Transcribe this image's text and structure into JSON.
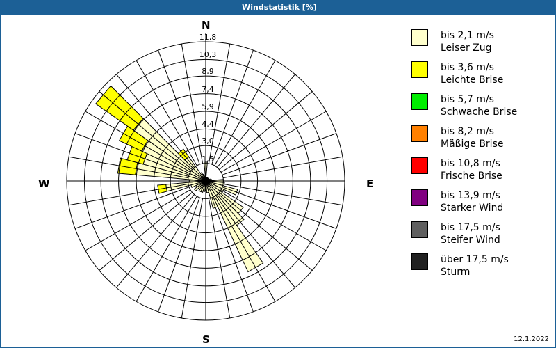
{
  "window": {
    "title": "Windstatistik [%]",
    "title_bar_color": "#1c6096",
    "date": "12.1.2022"
  },
  "compass": {
    "n": "N",
    "e": "E",
    "s": "S",
    "w": "W"
  },
  "ring_labels": [
    "1,5",
    "3,0",
    "4,4",
    "5,9",
    "7,4",
    "8,9",
    "10,3",
    "11,8"
  ],
  "legend": {
    "items": [
      {
        "range": "bis 2,1 m/s",
        "name": "Leiser Zug",
        "color": "#ffffcc"
      },
      {
        "range": "bis 3,6 m/s",
        "name": "Leichte Brise",
        "color": "#ffff00"
      },
      {
        "range": "bis 5,7 m/s",
        "name": "Schwache Brise",
        "color": "#00ee00"
      },
      {
        "range": "bis 8,2 m/s",
        "name": "Mäßige Brise",
        "color": "#ff8000"
      },
      {
        "range": "bis 10,8 m/s",
        "name": "Frische Brise",
        "color": "#ff0000"
      },
      {
        "range": "bis 13,9 m/s",
        "name": "Starker Wind",
        "color": "#800080"
      },
      {
        "range": "bis 17,5 m/s",
        "name": "Steifer Wind",
        "color": "#606060"
      },
      {
        "range": "über 17,5 m/s",
        "name": "Sturm",
        "color": "#202020"
      }
    ]
  },
  "chart_data": {
    "type": "windrose",
    "title": "Windstatistik [%]",
    "unit": "%",
    "radial_max": 11.8,
    "radial_ticks": [
      1.5,
      3.0,
      4.4,
      5.9,
      7.4,
      8.9,
      10.3,
      11.8
    ],
    "sector_width_deg": 10,
    "series_names": [
      "bis 2,1 m/s Leiser Zug",
      "bis 3,6 m/s Leichte Brise"
    ],
    "series_colors": [
      "#ffffcc",
      "#ffff00"
    ],
    "directions_deg": [
      0,
      10,
      20,
      30,
      40,
      50,
      60,
      70,
      80,
      90,
      100,
      110,
      120,
      130,
      140,
      150,
      160,
      170,
      180,
      190,
      200,
      210,
      220,
      230,
      240,
      250,
      260,
      270,
      280,
      290,
      300,
      310,
      320,
      330,
      340,
      350
    ],
    "series": [
      {
        "name": "Leiser Zug",
        "values": [
          1.6,
          0.3,
          0.3,
          0.3,
          0.3,
          0.3,
          0.3,
          0.4,
          0.5,
          1.5,
          1.6,
          2.8,
          1.7,
          3.9,
          4.6,
          8.5,
          2.4,
          1.0,
          0.8,
          0.9,
          1.0,
          1.0,
          0.9,
          1.2,
          0.9,
          1.3,
          3.4,
          1.4,
          6.0,
          5.5,
          6.0,
          7.5,
          2.5,
          0.8,
          0.6,
          0.4
        ]
      },
      {
        "name": "Leichte Brise",
        "values": [
          0,
          0,
          0,
          0,
          0,
          0,
          0,
          0,
          0,
          0,
          0,
          0,
          0,
          0,
          0,
          0,
          0,
          0,
          0,
          0,
          0,
          0,
          0,
          0,
          0,
          0,
          0.7,
          0,
          1.5,
          1.4,
          2.1,
          3.9,
          0.8,
          0,
          0,
          0
        ]
      }
    ],
    "legend_position": "right",
    "grid": true
  }
}
